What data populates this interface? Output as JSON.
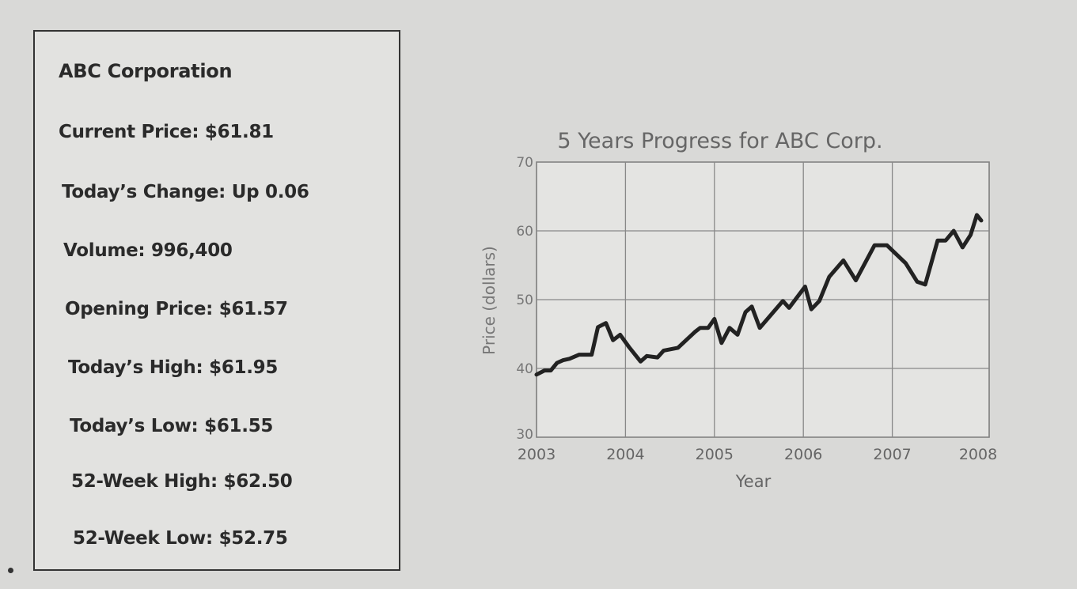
{
  "info": {
    "title": "ABC Corporation",
    "lines": [
      "Current Price: $61.81",
      "Today’s Change: Up 0.06",
      "Volume: 996,400",
      "Opening Price: $61.57",
      "Today’s High: $61.95",
      "Today’s Low: $61.55",
      "52-Week High: $62.50",
      "52-Week Low: $52.75"
    ]
  },
  "chart_data": {
    "type": "line",
    "title": "5 Years Progress for ABC Corp.",
    "xlabel": "Year",
    "ylabel": "Price (dollars)",
    "xlim": [
      2003,
      2008
    ],
    "ylim": [
      30,
      70
    ],
    "xticks": [
      "2003",
      "2004",
      "2005",
      "2006",
      "2007",
      "2008"
    ],
    "yticks": [
      "30",
      "40",
      "50",
      "60",
      "70"
    ],
    "grid": true,
    "series": [
      {
        "name": "ABC Corp",
        "x": [
          2003.0,
          2003.09,
          2003.16,
          2003.23,
          2003.3,
          2003.37,
          2003.48,
          2003.62,
          2003.69,
          2003.78,
          2003.86,
          2003.94,
          2004.04,
          2004.17,
          2004.24,
          2004.36,
          2004.43,
          2004.59,
          2004.78,
          2004.84,
          2004.93,
          2005.0,
          2005.08,
          2005.17,
          2005.26,
          2005.35,
          2005.42,
          2005.51,
          2005.77,
          2005.84,
          2006.02,
          2006.09,
          2006.18,
          2006.29,
          2006.45,
          2006.59,
          2006.8,
          2006.94,
          2007.15,
          2007.28,
          2007.37,
          2007.51,
          2007.6,
          2007.69,
          2007.79,
          2007.88,
          2007.95,
          2008.0
        ],
        "y": [
          39.1,
          39.7,
          39.7,
          40.8,
          41.2,
          41.4,
          42.0,
          42.0,
          46.0,
          46.6,
          44.1,
          44.9,
          43.1,
          41.0,
          41.8,
          41.6,
          42.6,
          43.0,
          45.3,
          45.9,
          45.9,
          47.2,
          43.7,
          45.9,
          44.9,
          48.2,
          49.0,
          45.9,
          49.8,
          48.8,
          51.9,
          48.6,
          49.8,
          53.3,
          55.7,
          52.8,
          57.9,
          57.9,
          55.3,
          52.6,
          52.2,
          58.6,
          58.6,
          60.0,
          57.6,
          59.4,
          62.3,
          61.5
        ]
      }
    ]
  }
}
